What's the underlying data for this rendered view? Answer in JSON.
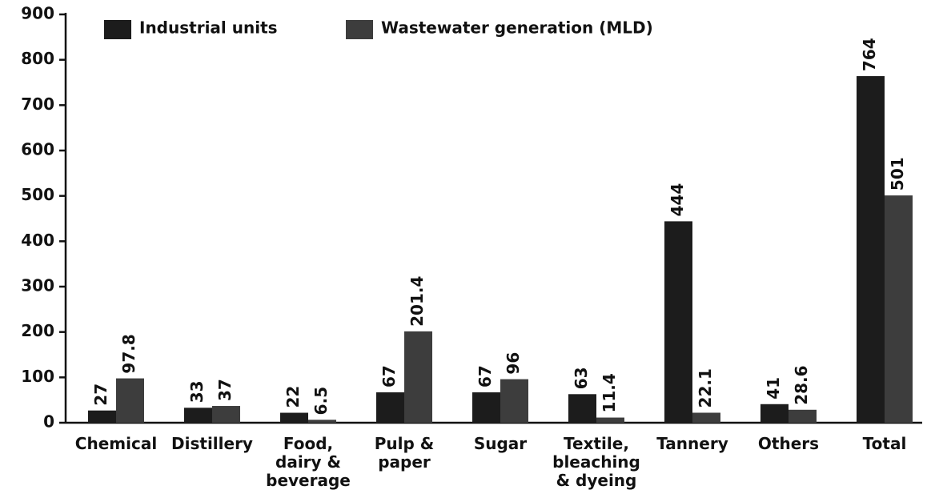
{
  "chart_data": {
    "type": "bar",
    "categories": [
      "Chemical",
      "Distillery",
      "Food,\ndairy &\nbeverage",
      "Pulp &\npaper",
      "Sugar",
      "Textile,\nbleaching\n& dyeing",
      "Tannery",
      "Others",
      "Total"
    ],
    "series": [
      {
        "name": "Industrial units",
        "color": "#1c1c1c",
        "values": [
          27,
          33,
          22,
          67,
          67,
          63,
          444,
          41,
          764
        ]
      },
      {
        "name": "Wastewater generation (MLD)",
        "color": "#3d3d3d",
        "values": [
          97.8,
          37,
          6.5,
          201.4,
          96,
          11.4,
          22.1,
          28.6,
          501
        ]
      }
    ],
    "ylim": [
      0,
      900
    ],
    "yticks": [
      0,
      100,
      200,
      300,
      400,
      500,
      600,
      700,
      800,
      900
    ],
    "legend": "top",
    "grid": false
  }
}
